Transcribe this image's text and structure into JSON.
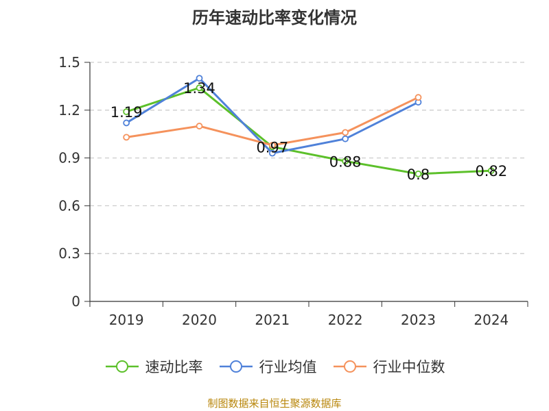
{
  "title": "历年速动比率变化情况",
  "source": "制图数据来自恒生聚源数据库",
  "chart_data": {
    "type": "line",
    "title": "历年速动比率变化情况",
    "categories": [
      "2019",
      "2020",
      "2021",
      "2022",
      "2023",
      "2024"
    ],
    "ylim": [
      0,
      1.5
    ],
    "yticks": [
      0,
      0.3,
      0.6,
      0.9,
      1.2,
      1.5
    ],
    "ytick_labels": [
      "0",
      "0.3",
      "0.6",
      "0.9",
      "1.2",
      "1.5"
    ],
    "grid": true,
    "legend_position": "bottom-center",
    "series": [
      {
        "name": "速动比率",
        "color": "#5cc02a",
        "values": [
          1.19,
          1.34,
          0.97,
          0.88,
          0.8,
          0.82
        ],
        "labels": [
          "1.19",
          "1.34",
          "0.97",
          "0.88",
          "0.8",
          "0.82"
        ]
      },
      {
        "name": "行业均值",
        "color": "#4f81d9",
        "values": [
          1.12,
          1.4,
          0.93,
          1.02,
          1.25,
          null
        ]
      },
      {
        "name": "行业中位数",
        "color": "#f5925c",
        "values": [
          1.03,
          1.1,
          0.98,
          1.06,
          1.28,
          null
        ]
      }
    ]
  }
}
